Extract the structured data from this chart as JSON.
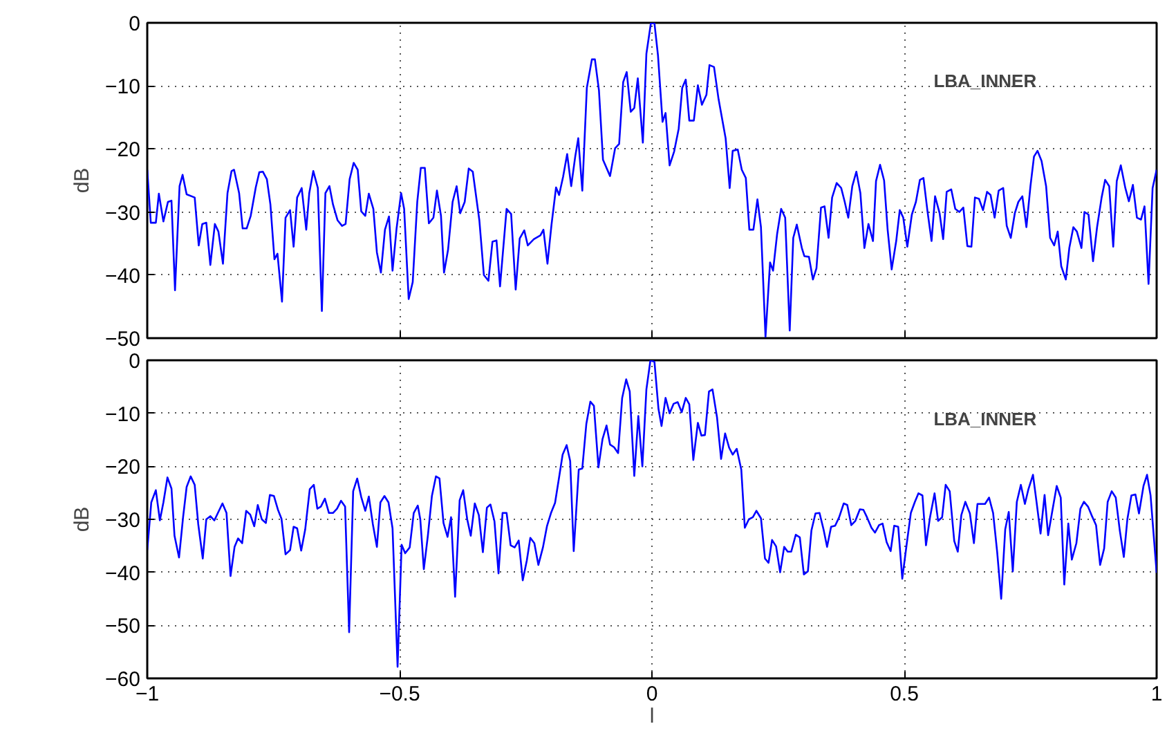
{
  "chart_data": [
    {
      "type": "line",
      "ylabel": "dB",
      "annotations": [
        "LBA_INNER"
      ],
      "xlim": [
        -1,
        1
      ],
      "xticks": [
        -0.5,
        0,
        0.5
      ],
      "ylim": [
        -50,
        0
      ],
      "yticks": [
        {
          "value": -50,
          "label": "−50"
        },
        {
          "value": -40,
          "label": "−40"
        },
        {
          "value": -30,
          "label": "−30"
        },
        {
          "value": -20,
          "label": "−20"
        },
        {
          "value": -10,
          "label": "−10"
        },
        0
      ],
      "tick_labels": "y",
      "grid": true,
      "line_style": "solid",
      "marker": "none",
      "series": [
        {
          "color": "#0000ff",
          "x": [
            -1,
            -0.993,
            -0.983,
            -0.977,
            -0.968,
            -0.959,
            -0.952,
            -0.945,
            -0.936,
            -0.93,
            -0.922,
            -0.906,
            -0.898,
            -0.891,
            -0.883,
            -0.875,
            -0.866,
            -0.859,
            -0.85,
            -0.841,
            -0.833,
            -0.828,
            -0.818,
            -0.811,
            -0.803,
            -0.795,
            -0.785,
            -0.778,
            -0.771,
            -0.763,
            -0.756,
            -0.748,
            -0.742,
            -0.733,
            -0.726,
            -0.717,
            -0.71,
            -0.703,
            -0.694,
            -0.685,
            -0.679,
            -0.671,
            -0.662,
            -0.654,
            -0.647,
            -0.639,
            -0.632,
            -0.623,
            -0.614,
            -0.607,
            -0.599,
            -0.591,
            -0.583,
            -0.576,
            -0.568,
            -0.561,
            -0.552,
            -0.545,
            -0.537,
            -0.529,
            -0.521,
            -0.514,
            -0.506,
            -0.497,
            -0.491,
            -0.482,
            -0.474,
            -0.465,
            -0.458,
            -0.45,
            -0.442,
            -0.433,
            -0.426,
            -0.418,
            -0.412,
            -0.404,
            -0.395,
            -0.387,
            -0.38,
            -0.371,
            -0.363,
            -0.355,
            -0.342,
            -0.333,
            -0.324,
            -0.316,
            -0.308,
            -0.301,
            -0.288,
            -0.279,
            -0.27,
            -0.262,
            -0.253,
            -0.246,
            -0.234,
            -0.221,
            -0.215,
            -0.207,
            -0.199,
            -0.19,
            -0.184,
            -0.176,
            -0.168,
            -0.16,
            -0.152,
            -0.146,
            -0.138,
            -0.129,
            -0.119,
            -0.113,
            -0.105,
            -0.097,
            -0.083,
            -0.073,
            -0.065,
            -0.057,
            -0.05,
            -0.042,
            -0.035,
            -0.028,
            -0.018,
            -0.011,
            -0.002,
            0.005,
            0.012,
            0.021,
            0.027,
            0.035,
            0.044,
            0.053,
            0.06,
            0.067,
            0.074,
            0.083,
            0.091,
            0.099,
            0.108,
            0.114,
            0.123,
            0.132,
            0.146,
            0.154,
            0.16,
            0.17,
            0.178,
            0.186,
            0.193,
            0.201,
            0.209,
            0.216,
            0.225,
            0.234,
            0.24,
            0.248,
            0.256,
            0.264,
            0.273,
            0.28,
            0.287,
            0.297,
            0.302,
            0.311,
            0.319,
            0.326,
            0.335,
            0.342,
            0.35,
            0.357,
            0.366,
            0.375,
            0.382,
            0.389,
            0.397,
            0.405,
            0.413,
            0.421,
            0.429,
            0.438,
            0.444,
            0.452,
            0.46,
            0.467,
            0.475,
            0.484,
            0.491,
            0.498,
            0.506,
            0.515,
            0.523,
            0.531,
            0.538,
            0.546,
            0.554,
            0.561,
            0.57,
            0.577,
            0.584,
            0.593,
            0.601,
            0.609,
            0.617,
            0.625,
            0.633,
            0.64,
            0.648,
            0.656,
            0.664,
            0.671,
            0.679,
            0.687,
            0.696,
            0.703,
            0.711,
            0.719,
            0.726,
            0.734,
            0.742,
            0.75,
            0.757,
            0.764,
            0.772,
            0.781,
            0.789,
            0.797,
            0.804,
            0.811,
            0.82,
            0.827,
            0.835,
            0.842,
            0.851,
            0.857,
            0.865,
            0.874,
            0.882,
            0.891,
            0.898,
            0.906,
            0.914,
            0.921,
            0.929,
            0.938,
            0.945,
            0.953,
            0.961,
            0.969,
            0.976,
            0.984,
            0.992,
            1.0
          ],
          "values": [
            -23.3,
            -31.7,
            -31.7,
            -27.1,
            -31.5,
            -28.4,
            -28.2,
            -42.4,
            -25.9,
            -24.1,
            -27.2,
            -27.7,
            -35.3,
            -31.9,
            -31.7,
            -38.4,
            -31.9,
            -33.1,
            -38.2,
            -27.0,
            -23.5,
            -23.3,
            -27.0,
            -32.6,
            -32.6,
            -30.6,
            -26.1,
            -23.7,
            -23.6,
            -24.8,
            -28.8,
            -37.5,
            -36.6,
            -44.2,
            -30.9,
            -29.7,
            -35.5,
            -27.7,
            -26.2,
            -32.8,
            -27.0,
            -23.5,
            -26.2,
            -45.7,
            -27.0,
            -25.9,
            -28.8,
            -31.3,
            -32.2,
            -31.9,
            -24.8,
            -22.2,
            -23.3,
            -29.9,
            -30.6,
            -27.1,
            -29.5,
            -36.4,
            -39.6,
            -32.8,
            -30.7,
            -39.3,
            -32.6,
            -27.0,
            -29.5,
            -43.8,
            -41.1,
            -28.4,
            -23.0,
            -23.0,
            -31.8,
            -30.9,
            -26.6,
            -30.6,
            -39.6,
            -36.0,
            -28.4,
            -25.9,
            -30.2,
            -28.4,
            -23.1,
            -23.6,
            -31.3,
            -40.0,
            -40.9,
            -34.7,
            -34.5,
            -41.8,
            -29.5,
            -30.3,
            -42.3,
            -34.2,
            -32.9,
            -35.3,
            -34.3,
            -33.7,
            -32.8,
            -38.2,
            -32.0,
            -26.1,
            -27.3,
            -24.4,
            -20.8,
            -25.9,
            -21.2,
            -18.3,
            -26.6,
            -10.3,
            -5.8,
            -5.8,
            -10.7,
            -21.7,
            -24.3,
            -19.9,
            -19.2,
            -9.4,
            -7.8,
            -14.1,
            -13.5,
            -8.8,
            -19.0,
            -4.9,
            0,
            -0.1,
            -5.2,
            -15.7,
            -14.3,
            -22.6,
            -20.4,
            -16.8,
            -10.3,
            -9.0,
            -15.5,
            -15.5,
            -9.9,
            -13.0,
            -11.4,
            -6.7,
            -7.0,
            -12.1,
            -18.3,
            -26.2,
            -20.3,
            -20.1,
            -23.3,
            -24.6,
            -32.8,
            -32.8,
            -28.0,
            -32.4,
            -49.8,
            -38.0,
            -39.3,
            -33.5,
            -29.5,
            -30.9,
            -48.8,
            -34.1,
            -32.0,
            -35.7,
            -37.0,
            -37.1,
            -40.7,
            -38.9,
            -29.3,
            -29.1,
            -34.1,
            -27.7,
            -25.4,
            -26.2,
            -28.4,
            -30.9,
            -25.9,
            -23.6,
            -27.0,
            -35.7,
            -31.9,
            -34.6,
            -25.1,
            -22.5,
            -25.0,
            -32.8,
            -39.1,
            -34.6,
            -29.7,
            -30.9,
            -35.5,
            -30.4,
            -28.4,
            -24.9,
            -24.6,
            -29.9,
            -34.6,
            -27.5,
            -30.2,
            -34.3,
            -26.8,
            -26.4,
            -29.5,
            -30.0,
            -29.3,
            -35.4,
            -35.5,
            -27.7,
            -27.9,
            -29.7,
            -26.8,
            -27.3,
            -30.9,
            -26.6,
            -26.2,
            -32.2,
            -34.1,
            -30.2,
            -28.4,
            -27.5,
            -32.4,
            -25.9,
            -21.2,
            -20.3,
            -21.9,
            -25.9,
            -34.1,
            -35.3,
            -33.1,
            -38.6,
            -40.7,
            -35.7,
            -32.4,
            -33.1,
            -35.7,
            -30.0,
            -30.4,
            -37.8,
            -32.4,
            -27.7,
            -24.9,
            -25.9,
            -35.5,
            -25.1,
            -22.6,
            -26.2,
            -28.3,
            -25.7,
            -30.9,
            -31.2,
            -29.1,
            -41.4,
            -26.2,
            -23.3
          ]
        }
      ]
    },
    {
      "type": "line",
      "xlabel": "l",
      "ylabel": "dB",
      "annotations": [
        "LBA_INNER"
      ],
      "xlim": [
        -1,
        1
      ],
      "xticks": [
        {
          "value": -1,
          "label": "−1"
        },
        {
          "value": -0.5,
          "label": "−0.5"
        },
        0,
        0.5,
        1
      ],
      "ylim": [
        -60,
        0
      ],
      "yticks": [
        {
          "value": -60,
          "label": "−60"
        },
        {
          "value": -50,
          "label": "−50"
        },
        {
          "value": -40,
          "label": "−40"
        },
        {
          "value": -30,
          "label": "−30"
        },
        {
          "value": -20,
          "label": "−20"
        },
        {
          "value": -10,
          "label": "−10"
        },
        0
      ],
      "grid": true,
      "line_style": "solid",
      "marker": "none",
      "series": [
        {
          "color": "#0000ff",
          "x": [
            -1,
            -0.992,
            -0.983,
            -0.975,
            -0.968,
            -0.96,
            -0.952,
            -0.946,
            -0.937,
            -0.929,
            -0.922,
            -0.914,
            -0.906,
            -0.899,
            -0.89,
            -0.883,
            -0.875,
            -0.867,
            -0.86,
            -0.851,
            -0.843,
            -0.835,
            -0.827,
            -0.82,
            -0.812,
            -0.804,
            -0.796,
            -0.788,
            -0.781,
            -0.773,
            -0.765,
            -0.757,
            -0.749,
            -0.741,
            -0.734,
            -0.726,
            -0.717,
            -0.71,
            -0.703,
            -0.695,
            -0.687,
            -0.678,
            -0.67,
            -0.663,
            -0.656,
            -0.648,
            -0.64,
            -0.632,
            -0.624,
            -0.616,
            -0.608,
            -0.6,
            -0.592,
            -0.584,
            -0.576,
            -0.568,
            -0.561,
            -0.553,
            -0.545,
            -0.538,
            -0.53,
            -0.522,
            -0.514,
            -0.504,
            -0.496,
            -0.489,
            -0.48,
            -0.472,
            -0.464,
            -0.459,
            -0.452,
            -0.444,
            -0.436,
            -0.428,
            -0.421,
            -0.413,
            -0.405,
            -0.398,
            -0.39,
            -0.381,
            -0.374,
            -0.366,
            -0.359,
            -0.351,
            -0.343,
            -0.335,
            -0.327,
            -0.32,
            -0.312,
            -0.304,
            -0.296,
            -0.288,
            -0.28,
            -0.272,
            -0.264,
            -0.256,
            -0.248,
            -0.241,
            -0.233,
            -0.225,
            -0.216,
            -0.208,
            -0.2,
            -0.192,
            -0.185,
            -0.177,
            -0.169,
            -0.162,
            -0.155,
            -0.145,
            -0.138,
            -0.13,
            -0.122,
            -0.115,
            -0.106,
            -0.098,
            -0.09,
            -0.083,
            -0.075,
            -0.067,
            -0.059,
            -0.051,
            -0.044,
            -0.035,
            -0.027,
            -0.019,
            -0.011,
            -0.003,
            0.005,
            0.013,
            0.019,
            0.027,
            0.035,
            0.043,
            0.051,
            0.059,
            0.067,
            0.074,
            0.082,
            0.091,
            0.098,
            0.105,
            0.113,
            0.12,
            0.129,
            0.137,
            0.145,
            0.153,
            0.16,
            0.168,
            0.177,
            0.184,
            0.192,
            0.2,
            0.207,
            0.216,
            0.224,
            0.231,
            0.238,
            0.246,
            0.254,
            0.262,
            0.269,
            0.276,
            0.285,
            0.293,
            0.301,
            0.309,
            0.316,
            0.324,
            0.332,
            0.34,
            0.347,
            0.355,
            0.363,
            0.371,
            0.38,
            0.387,
            0.395,
            0.403,
            0.412,
            0.419,
            0.426,
            0.435,
            0.442,
            0.45,
            0.457,
            0.465,
            0.473,
            0.48,
            0.488,
            0.496,
            0.505,
            0.513,
            0.521,
            0.528,
            0.536,
            0.543,
            0.551,
            0.56,
            0.567,
            0.575,
            0.582,
            0.59,
            0.599,
            0.606,
            0.613,
            0.621,
            0.63,
            0.638,
            0.645,
            0.652,
            0.66,
            0.668,
            0.676,
            0.684,
            0.692,
            0.7,
            0.707,
            0.715,
            0.723,
            0.731,
            0.739,
            0.746,
            0.755,
            0.762,
            0.77,
            0.778,
            0.785,
            0.793,
            0.802,
            0.81,
            0.817,
            0.825,
            0.832,
            0.841,
            0.849,
            0.856,
            0.864,
            0.871,
            0.88,
            0.888,
            0.896,
            0.903,
            0.911,
            0.919,
            0.927,
            0.935,
            0.942,
            0.95,
            0.958,
            0.965,
            0.974,
            0.981,
            0.988,
            1.0
          ],
          "values": [
            -35.8,
            -26.8,
            -24.5,
            -30.2,
            -26.8,
            -22.1,
            -24.2,
            -33.1,
            -37.2,
            -29.6,
            -23.9,
            -21.9,
            -23.5,
            -30.9,
            -37.4,
            -30.0,
            -29.4,
            -30.2,
            -28.8,
            -27.0,
            -28.8,
            -40.7,
            -35.2,
            -33.6,
            -34.5,
            -28.4,
            -29.1,
            -31.3,
            -27.3,
            -30.0,
            -30.7,
            -25.4,
            -25.6,
            -28.2,
            -29.9,
            -36.6,
            -35.8,
            -31.4,
            -31.7,
            -35.9,
            -31.9,
            -24.3,
            -23.5,
            -28.0,
            -27.6,
            -26.1,
            -28.8,
            -28.8,
            -28.0,
            -26.5,
            -27.6,
            -51.3,
            -24.7,
            -22.3,
            -25.8,
            -28.4,
            -25.7,
            -30.9,
            -35.2,
            -26.8,
            -25.6,
            -26.8,
            -31.7,
            -57.8,
            -34.8,
            -36.4,
            -35.3,
            -28.8,
            -27.4,
            -30.0,
            -39.4,
            -33.1,
            -25.6,
            -21.9,
            -22.3,
            -30.7,
            -33.3,
            -29.6,
            -44.6,
            -26.4,
            -24.5,
            -30.0,
            -33.1,
            -27.0,
            -29.2,
            -36.2,
            -27.8,
            -27.2,
            -30.4,
            -40.2,
            -28.8,
            -28.8,
            -34.9,
            -35.3,
            -34.0,
            -41.5,
            -37.8,
            -33.5,
            -34.5,
            -38.6,
            -35.3,
            -31.3,
            -28.8,
            -26.9,
            -22.7,
            -17.8,
            -16.0,
            -19.0,
            -36.0,
            -20.6,
            -20.4,
            -12.0,
            -7.8,
            -8.6,
            -20.2,
            -14.9,
            -12.3,
            -15.9,
            -16.4,
            -17.5,
            -7.1,
            -3.6,
            -5.9,
            -21.8,
            -10.5,
            -20.0,
            -5.5,
            0,
            -0.3,
            -9.2,
            -12.4,
            -7.1,
            -10.0,
            -8.2,
            -7.9,
            -9.8,
            -7.1,
            -8.3,
            -18.8,
            -11.8,
            -14.2,
            -14.1,
            -5.9,
            -5.5,
            -10.8,
            -18.6,
            -13.8,
            -16.5,
            -17.8,
            -16.7,
            -20.6,
            -31.6,
            -30.0,
            -29.6,
            -28.4,
            -29.8,
            -37.4,
            -38.2,
            -33.9,
            -35.1,
            -40.0,
            -35.2,
            -36.1,
            -36.1,
            -32.9,
            -33.4,
            -40.4,
            -39.8,
            -32.1,
            -28.9,
            -28.8,
            -31.9,
            -35.2,
            -31.4,
            -31.2,
            -29.6,
            -27.0,
            -27.3,
            -31.1,
            -30.3,
            -28.1,
            -28.2,
            -29.6,
            -31.6,
            -32.5,
            -31.1,
            -30.8,
            -34.3,
            -36.0,
            -31.2,
            -31.4,
            -41.2,
            -34.5,
            -28.8,
            -26.7,
            -25.1,
            -25.5,
            -34.9,
            -29.6,
            -25.1,
            -30.3,
            -29.6,
            -23.5,
            -24.7,
            -34.1,
            -36.1,
            -29.2,
            -26.7,
            -28.9,
            -34.5,
            -27.1,
            -27.1,
            -27.1,
            -25.9,
            -28.8,
            -36.1,
            -45.0,
            -31.9,
            -28.6,
            -39.8,
            -26.7,
            -23.5,
            -27.1,
            -24.3,
            -21.6,
            -26.7,
            -32.7,
            -25.4,
            -33.0,
            -28.6,
            -23.7,
            -25.9,
            -42.3,
            -30.8,
            -37.6,
            -34.5,
            -28.0,
            -26.7,
            -27.6,
            -29.2,
            -31.1,
            -38.6,
            -35.5,
            -26.7,
            -24.7,
            -25.9,
            -32.1,
            -37.1,
            -30.0,
            -25.5,
            -25.3,
            -28.9,
            -23.7,
            -21.6,
            -25.5,
            -40.1
          ]
        }
      ]
    }
  ]
}
